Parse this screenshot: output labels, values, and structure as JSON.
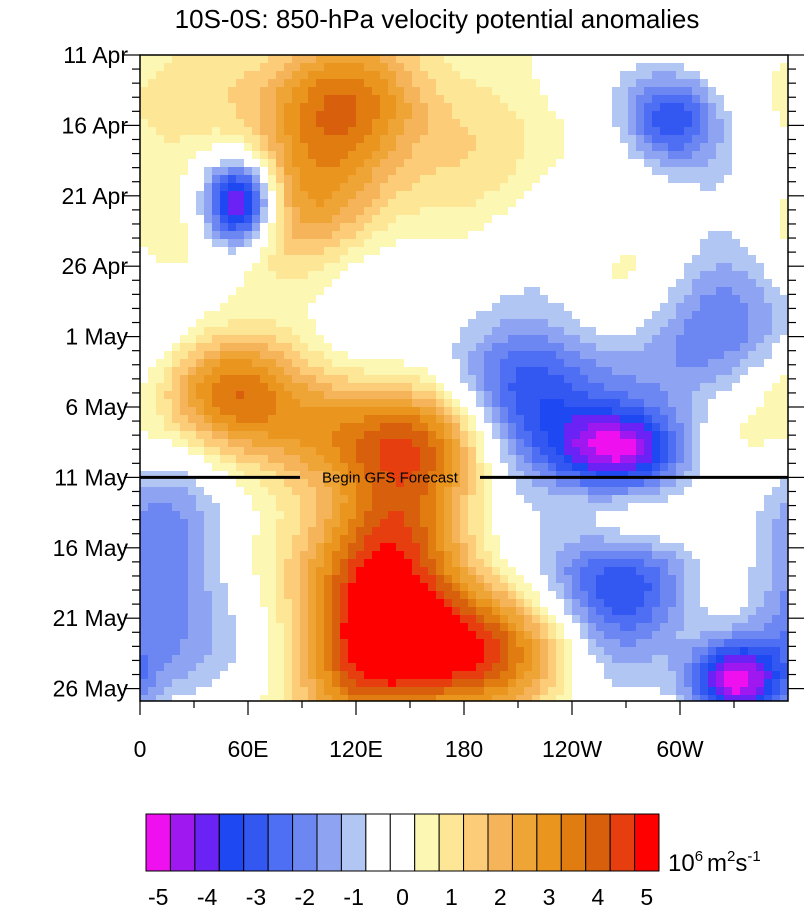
{
  "chart_data": {
    "type": "heatmap",
    "title": "10S-0S: 850-hPa velocity potential anomalies",
    "x_ticks": [
      "0",
      "60E",
      "120E",
      "180",
      "120W",
      "60W"
    ],
    "x_tick_values": [
      0,
      60,
      120,
      180,
      240,
      300
    ],
    "x_range": [
      0,
      360
    ],
    "y_ticks": [
      "11 Apr",
      "16 Apr",
      "21 Apr",
      "26 Apr",
      "1 May",
      "6 May",
      "11 May",
      "16 May",
      "21 May",
      "26 May"
    ],
    "y_tick_days": [
      0,
      5,
      10,
      15,
      20,
      25,
      30,
      35,
      40,
      45
    ],
    "y_range": [
      0,
      45.5
    ],
    "forecast_line": {
      "day": 30,
      "label": "Begin GFS Forecast"
    },
    "colorbar": {
      "labels": [
        "-5",
        "-4",
        "-3",
        "-2",
        "-1",
        "0",
        "1",
        "2",
        "3",
        "4",
        "5"
      ],
      "colors": [
        "#ee10ee",
        "#a018f0",
        "#6a22f5",
        "#1e48f2",
        "#3358f2",
        "#4e6ef4",
        "#6c86f2",
        "#8ea4f2",
        "#b2c6f4",
        "#ffffff",
        "#ffffff",
        "#fdf7b4",
        "#fde696",
        "#fdcc78",
        "#f6b45a",
        "#eea536",
        "#e9951e",
        "#e07c10",
        "#d8600c",
        "#e63e0e",
        "#ff0000"
      ],
      "units": "10^6 m^2 s^-1",
      "units_base": "10",
      "units_exp1": "6",
      "units_m": "m",
      "units_exp2": "2",
      "units_s": "s",
      "units_exp3": "-1"
    },
    "features": [
      {
        "lon": 55,
        "day": 10.5,
        "value": -5.5,
        "sx": 14,
        "sy": 2.2
      },
      {
        "lon": 295,
        "day": 4.5,
        "value": -4,
        "sx": 20,
        "sy": 2.5
      },
      {
        "lon": 205,
        "day": 25,
        "value": -3.5,
        "sx": 55,
        "sy": 5
      },
      {
        "lon": 265,
        "day": 28,
        "value": -4,
        "sx": 25,
        "sy": 2
      },
      {
        "lon": 265,
        "day": 38,
        "value": -3.5,
        "sx": 35,
        "sy": 4
      },
      {
        "lon": 330,
        "day": 44.5,
        "value": -4.5,
        "sx": 18,
        "sy": 2
      },
      {
        "lon": 20,
        "day": 38,
        "value": -2.5,
        "sx": 30,
        "sy": 6
      },
      {
        "lon": 330,
        "day": 18,
        "value": -2,
        "sx": 30,
        "sy": 4
      },
      {
        "lon": 120,
        "day": 3.5,
        "value": 3,
        "sx": 40,
        "sy": 3
      },
      {
        "lon": 90,
        "day": 9,
        "value": 2,
        "sx": 40,
        "sy": 4
      },
      {
        "lon": 45,
        "day": 23.5,
        "value": 3,
        "sx": 25,
        "sy": 3
      },
      {
        "lon": 115,
        "day": 27,
        "value": 3.5,
        "sx": 35,
        "sy": 3
      },
      {
        "lon": 170,
        "day": 27,
        "value": 3.5,
        "sx": 28,
        "sy": 3
      },
      {
        "lon": 150,
        "day": 34,
        "value": 2.5,
        "sx": 30,
        "sy": 5
      },
      {
        "lon": 175,
        "day": 42,
        "value": 4.5,
        "sx": 40,
        "sy": 3.5
      },
      {
        "lon": 120,
        "day": 40,
        "value": 3,
        "sx": 30,
        "sy": 5
      },
      {
        "lon": 275,
        "day": 33.5,
        "value": 2,
        "sx": 25,
        "sy": 2
      }
    ]
  }
}
